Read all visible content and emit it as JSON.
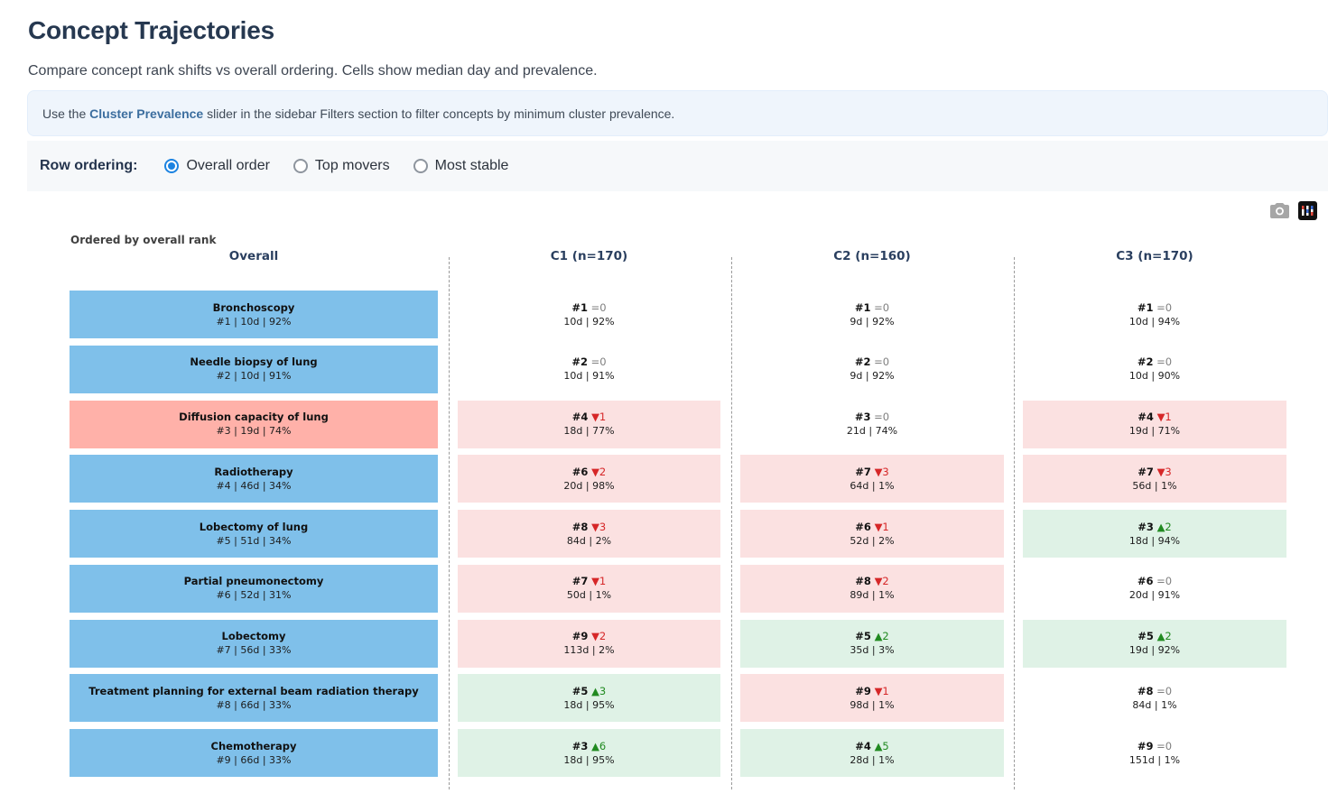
{
  "header": {
    "title": "Concept Trajectories",
    "subtitle": "Compare concept rank shifts vs overall ordering. Cells show median day and prevalence."
  },
  "info_banner": {
    "text_before": "Use the ",
    "highlight": "Cluster Prevalence",
    "text_after": " slider in the sidebar Filters section to filter concepts by minimum cluster prevalence."
  },
  "row_ordering": {
    "label": "Row ordering:",
    "options": [
      {
        "label": "Overall order",
        "selected": true
      },
      {
        "label": "Top movers",
        "selected": false
      },
      {
        "label": "Most stable",
        "selected": false
      }
    ]
  },
  "toolbar": {
    "camera_icon": "download-plot-as-png",
    "logo_icon": "plotly-logo"
  },
  "chart_data": {
    "type": "table",
    "annotation": "Ordered by overall rank",
    "columns": [
      {
        "key": "overall",
        "label": "Overall"
      },
      {
        "key": "c1",
        "label": "C1 (n=170)"
      },
      {
        "key": "c2",
        "label": "C2 (n=160)"
      },
      {
        "key": "c3",
        "label": "C3 (n=170)"
      }
    ],
    "colors": {
      "overall_blue": "#7FC0EA",
      "overall_salmon": "#FFB1A9",
      "cell_down": "#FBE1E1",
      "cell_up": "#DFF2E6",
      "cell_same": "transparent",
      "shift_down_text": "#D62728",
      "shift_up_text": "#218A21",
      "shift_same_text": "#7F7F7F"
    },
    "rows": [
      {
        "overall": {
          "name": "Bronchoscopy",
          "stats": "#1 | 10d | 92%",
          "color": "blue"
        },
        "clusters": [
          {
            "rank": "#1",
            "shift": "=0",
            "dir": "same",
            "stats": "10d | 92%"
          },
          {
            "rank": "#1",
            "shift": "=0",
            "dir": "same",
            "stats": "9d | 92%"
          },
          {
            "rank": "#1",
            "shift": "=0",
            "dir": "same",
            "stats": "10d | 94%"
          }
        ]
      },
      {
        "overall": {
          "name": "Needle biopsy of lung",
          "stats": "#2 | 10d | 91%",
          "color": "blue"
        },
        "clusters": [
          {
            "rank": "#2",
            "shift": "=0",
            "dir": "same",
            "stats": "10d | 91%"
          },
          {
            "rank": "#2",
            "shift": "=0",
            "dir": "same",
            "stats": "9d | 92%"
          },
          {
            "rank": "#2",
            "shift": "=0",
            "dir": "same",
            "stats": "10d | 90%"
          }
        ]
      },
      {
        "overall": {
          "name": "Diffusion capacity of lung",
          "stats": "#3 | 19d | 74%",
          "color": "salmon"
        },
        "clusters": [
          {
            "rank": "#4",
            "shift": "▼1",
            "dir": "down",
            "stats": "18d | 77%"
          },
          {
            "rank": "#3",
            "shift": "=0",
            "dir": "same",
            "stats": "21d | 74%"
          },
          {
            "rank": "#4",
            "shift": "▼1",
            "dir": "down",
            "stats": "19d | 71%"
          }
        ]
      },
      {
        "overall": {
          "name": "Radiotherapy",
          "stats": "#4 | 46d | 34%",
          "color": "blue"
        },
        "clusters": [
          {
            "rank": "#6",
            "shift": "▼2",
            "dir": "down",
            "stats": "20d | 98%"
          },
          {
            "rank": "#7",
            "shift": "▼3",
            "dir": "down",
            "stats": "64d | 1%"
          },
          {
            "rank": "#7",
            "shift": "▼3",
            "dir": "down",
            "stats": "56d | 1%"
          }
        ]
      },
      {
        "overall": {
          "name": "Lobectomy of lung",
          "stats": "#5 | 51d | 34%",
          "color": "blue"
        },
        "clusters": [
          {
            "rank": "#8",
            "shift": "▼3",
            "dir": "down",
            "stats": "84d | 2%"
          },
          {
            "rank": "#6",
            "shift": "▼1",
            "dir": "down",
            "stats": "52d | 2%"
          },
          {
            "rank": "#3",
            "shift": "▲2",
            "dir": "up",
            "stats": "18d | 94%"
          }
        ]
      },
      {
        "overall": {
          "name": "Partial pneumonectomy",
          "stats": "#6 | 52d | 31%",
          "color": "blue"
        },
        "clusters": [
          {
            "rank": "#7",
            "shift": "▼1",
            "dir": "down",
            "stats": "50d | 1%"
          },
          {
            "rank": "#8",
            "shift": "▼2",
            "dir": "down",
            "stats": "89d | 1%"
          },
          {
            "rank": "#6",
            "shift": "=0",
            "dir": "same",
            "stats": "20d | 91%"
          }
        ]
      },
      {
        "overall": {
          "name": "Lobectomy",
          "stats": "#7 | 56d | 33%",
          "color": "blue"
        },
        "clusters": [
          {
            "rank": "#9",
            "shift": "▼2",
            "dir": "down",
            "stats": "113d | 2%"
          },
          {
            "rank": "#5",
            "shift": "▲2",
            "dir": "up",
            "stats": "35d | 3%"
          },
          {
            "rank": "#5",
            "shift": "▲2",
            "dir": "up",
            "stats": "19d | 92%"
          }
        ]
      },
      {
        "overall": {
          "name": "Treatment planning for external beam radiation therapy",
          "stats": "#8 | 66d | 33%",
          "color": "blue"
        },
        "clusters": [
          {
            "rank": "#5",
            "shift": "▲3",
            "dir": "up",
            "stats": "18d | 95%"
          },
          {
            "rank": "#9",
            "shift": "▼1",
            "dir": "down",
            "stats": "98d | 1%"
          },
          {
            "rank": "#8",
            "shift": "=0",
            "dir": "same",
            "stats": "84d | 1%"
          }
        ]
      },
      {
        "overall": {
          "name": "Chemotherapy",
          "stats": "#9 | 66d | 33%",
          "color": "blue"
        },
        "clusters": [
          {
            "rank": "#3",
            "shift": "▲6",
            "dir": "up",
            "stats": "18d | 95%"
          },
          {
            "rank": "#4",
            "shift": "▲5",
            "dir": "up",
            "stats": "28d | 1%"
          },
          {
            "rank": "#9",
            "shift": "=0",
            "dir": "same",
            "stats": "151d | 1%"
          }
        ]
      }
    ]
  }
}
